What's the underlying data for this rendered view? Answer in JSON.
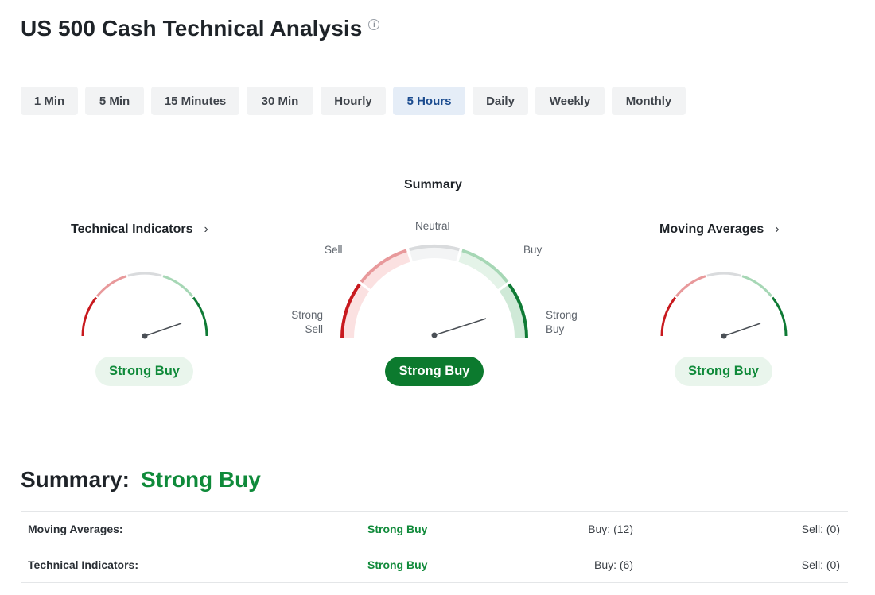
{
  "header": {
    "title": "US 500 Cash Technical Analysis",
    "info_icon": "info-icon"
  },
  "timeframes": [
    {
      "label": "1 Min",
      "active": false
    },
    {
      "label": "5 Min",
      "active": false
    },
    {
      "label": "15 Minutes",
      "active": false
    },
    {
      "label": "30 Min",
      "active": false
    },
    {
      "label": "Hourly",
      "active": false
    },
    {
      "label": "5 Hours",
      "active": true
    },
    {
      "label": "Daily",
      "active": false
    },
    {
      "label": "Weekly",
      "active": false
    },
    {
      "label": "Monthly",
      "active": false
    }
  ],
  "gauges": {
    "technical": {
      "title": "Technical Indicators",
      "chevron": "chevron-right-icon",
      "result": "Strong Buy"
    },
    "summary": {
      "title": "Summary",
      "result": "Strong Buy",
      "labels": {
        "strong_sell": [
          "Strong",
          "Sell"
        ],
        "sell": "Sell",
        "neutral": "Neutral",
        "buy": "Buy",
        "strong_buy": [
          "Strong",
          "Buy"
        ]
      }
    },
    "moving": {
      "title": "Moving Averages",
      "chevron": "chevron-right-icon",
      "result": "Strong Buy"
    }
  },
  "summary_section": {
    "label": "Summary:",
    "value": "Strong Buy",
    "rows": [
      {
        "name": "Moving Averages:",
        "signal": "Strong Buy",
        "buy": "Buy: (12)",
        "sell": "Sell: (0)"
      },
      {
        "name": "Technical Indicators:",
        "signal": "Strong Buy",
        "buy": "Buy: (6)",
        "sell": "Sell: (0)"
      }
    ]
  },
  "colors": {
    "strong_sell": "#c8191e",
    "sell": "#e8999b",
    "neutral": "#d9dbdd",
    "buy": "#a6d7b5",
    "strong_buy": "#0f7a35",
    "active_tab_bg": "#e5edf7",
    "signal_green": "#108a3a"
  }
}
